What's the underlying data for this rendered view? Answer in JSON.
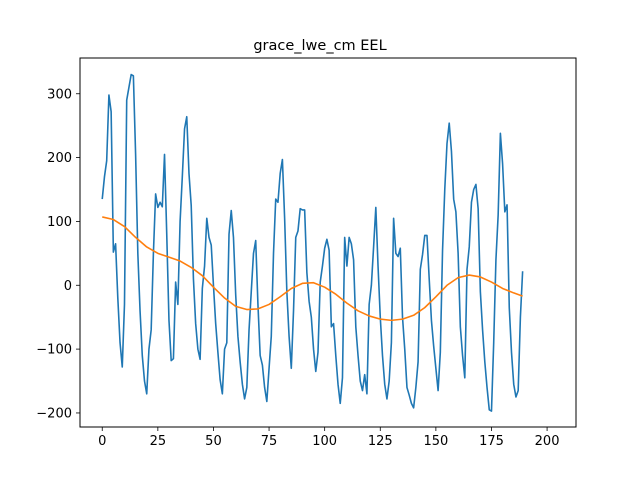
{
  "chart_data": {
    "type": "line",
    "title": "grace_lwe_cm EEL",
    "xlabel": "",
    "ylabel": "",
    "xlim": [
      -10,
      213
    ],
    "ylim": [
      -222,
      356
    ],
    "x_ticks": [
      0,
      25,
      50,
      75,
      100,
      125,
      150,
      175,
      200
    ],
    "y_ticks": [
      -200,
      -100,
      0,
      100,
      200,
      300
    ],
    "grid": false,
    "legend": "none",
    "series": [
      {
        "color": "#1f77b4",
        "points": [
          [
            0,
            135
          ],
          [
            1,
            170
          ],
          [
            2,
            195
          ],
          [
            3,
            298
          ],
          [
            4,
            272
          ],
          [
            5,
            52
          ],
          [
            6,
            65
          ],
          [
            7,
            -20
          ],
          [
            8,
            -90
          ],
          [
            9,
            -128
          ],
          [
            10,
            -30
          ],
          [
            11,
            290
          ],
          [
            12,
            310
          ],
          [
            13,
            330
          ],
          [
            14,
            328
          ],
          [
            15,
            205
          ],
          [
            16,
            50
          ],
          [
            17,
            -40
          ],
          [
            18,
            -110
          ],
          [
            19,
            -150
          ],
          [
            20,
            -170
          ],
          [
            21,
            -100
          ],
          [
            22,
            -70
          ],
          [
            23,
            50
          ],
          [
            24,
            143
          ],
          [
            25,
            122
          ],
          [
            26,
            130
          ],
          [
            27,
            123
          ],
          [
            28,
            205
          ],
          [
            29,
            80
          ],
          [
            30,
            -55
          ],
          [
            31,
            -118
          ],
          [
            32,
            -115
          ],
          [
            33,
            5
          ],
          [
            34,
            -30
          ],
          [
            35,
            100
          ],
          [
            36,
            170
          ],
          [
            37,
            245
          ],
          [
            38,
            264
          ],
          [
            39,
            175
          ],
          [
            40,
            125
          ],
          [
            41,
            10
          ],
          [
            42,
            -60
          ],
          [
            43,
            -100
          ],
          [
            44,
            -116
          ],
          [
            45,
            -5
          ],
          [
            46,
            30
          ],
          [
            47,
            105
          ],
          [
            48,
            75
          ],
          [
            49,
            63
          ],
          [
            50,
            0
          ],
          [
            51,
            -60
          ],
          [
            52,
            -105
          ],
          [
            53,
            -148
          ],
          [
            54,
            -170
          ],
          [
            55,
            -100
          ],
          [
            56,
            -90
          ],
          [
            57,
            80
          ],
          [
            58,
            117
          ],
          [
            59,
            75
          ],
          [
            60,
            -15
          ],
          [
            61,
            -80
          ],
          [
            62,
            -120
          ],
          [
            63,
            -155
          ],
          [
            64,
            -178
          ],
          [
            65,
            -160
          ],
          [
            66,
            -70
          ],
          [
            67,
            -10
          ],
          [
            68,
            50
          ],
          [
            69,
            70
          ],
          [
            70,
            -30
          ],
          [
            71,
            -110
          ],
          [
            72,
            -125
          ],
          [
            73,
            -160
          ],
          [
            74,
            -182
          ],
          [
            75,
            -130
          ],
          [
            76,
            -80
          ],
          [
            77,
            50
          ],
          [
            78,
            135
          ],
          [
            79,
            130
          ],
          [
            80,
            175
          ],
          [
            81,
            197
          ],
          [
            82,
            105
          ],
          [
            83,
            -10
          ],
          [
            84,
            -80
          ],
          [
            85,
            -130
          ],
          [
            86,
            -40
          ],
          [
            87,
            75
          ],
          [
            88,
            85
          ],
          [
            89,
            120
          ],
          [
            90,
            118
          ],
          [
            91,
            118
          ],
          [
            92,
            20
          ],
          [
            93,
            -25
          ],
          [
            94,
            -50
          ],
          [
            95,
            -100
          ],
          [
            96,
            -135
          ],
          [
            97,
            -105
          ],
          [
            98,
            5
          ],
          [
            99,
            30
          ],
          [
            100,
            58
          ],
          [
            101,
            72
          ],
          [
            102,
            55
          ],
          [
            103,
            -65
          ],
          [
            104,
            -60
          ],
          [
            105,
            -110
          ],
          [
            106,
            -155
          ],
          [
            107,
            -185
          ],
          [
            108,
            -145
          ],
          [
            109,
            75
          ],
          [
            110,
            30
          ],
          [
            111,
            75
          ],
          [
            112,
            65
          ],
          [
            113,
            40
          ],
          [
            114,
            -65
          ],
          [
            115,
            -110
          ],
          [
            116,
            -150
          ],
          [
            117,
            -165
          ],
          [
            118,
            -140
          ],
          [
            119,
            -170
          ],
          [
            120,
            -30
          ],
          [
            121,
            0
          ],
          [
            122,
            60
          ],
          [
            123,
            122
          ],
          [
            124,
            30
          ],
          [
            125,
            -50
          ],
          [
            126,
            -110
          ],
          [
            127,
            -155
          ],
          [
            128,
            -178
          ],
          [
            129,
            -150
          ],
          [
            130,
            -90
          ],
          [
            131,
            105
          ],
          [
            132,
            50
          ],
          [
            133,
            45
          ],
          [
            134,
            58
          ],
          [
            135,
            -50
          ],
          [
            136,
            -100
          ],
          [
            137,
            -160
          ],
          [
            138,
            -172
          ],
          [
            139,
            -185
          ],
          [
            140,
            -192
          ],
          [
            141,
            -160
          ],
          [
            142,
            -120
          ],
          [
            143,
            25
          ],
          [
            144,
            48
          ],
          [
            145,
            78
          ],
          [
            146,
            78
          ],
          [
            147,
            10
          ],
          [
            148,
            -55
          ],
          [
            149,
            -95
          ],
          [
            150,
            -130
          ],
          [
            151,
            -165
          ],
          [
            152,
            -105
          ],
          [
            153,
            55
          ],
          [
            154,
            150
          ],
          [
            155,
            222
          ],
          [
            156,
            254
          ],
          [
            157,
            210
          ],
          [
            158,
            135
          ],
          [
            159,
            115
          ],
          [
            160,
            50
          ],
          [
            161,
            -65
          ],
          [
            162,
            -110
          ],
          [
            163,
            -145
          ],
          [
            164,
            25
          ],
          [
            165,
            60
          ],
          [
            166,
            130
          ],
          [
            167,
            150
          ],
          [
            168,
            158
          ],
          [
            169,
            120
          ],
          [
            170,
            -10
          ],
          [
            171,
            -70
          ],
          [
            172,
            -120
          ],
          [
            173,
            -160
          ],
          [
            174,
            -195
          ],
          [
            175,
            -197
          ],
          [
            176,
            -90
          ],
          [
            177,
            40
          ],
          [
            178,
            110
          ],
          [
            179,
            238
          ],
          [
            180,
            190
          ],
          [
            181,
            115
          ],
          [
            182,
            126
          ],
          [
            183,
            -35
          ],
          [
            184,
            -105
          ],
          [
            185,
            -155
          ],
          [
            186,
            -175
          ],
          [
            187,
            -165
          ],
          [
            188,
            -50
          ],
          [
            189,
            22
          ]
        ]
      },
      {
        "color": "#ff7f0e",
        "points": [
          [
            0,
            107
          ],
          [
            5,
            103
          ],
          [
            10,
            92
          ],
          [
            15,
            75
          ],
          [
            20,
            60
          ],
          [
            25,
            50
          ],
          [
            30,
            44
          ],
          [
            35,
            38
          ],
          [
            40,
            28
          ],
          [
            45,
            15
          ],
          [
            50,
            -3
          ],
          [
            55,
            -20
          ],
          [
            60,
            -33
          ],
          [
            65,
            -38
          ],
          [
            70,
            -37
          ],
          [
            75,
            -30
          ],
          [
            80,
            -18
          ],
          [
            85,
            -5
          ],
          [
            90,
            3
          ],
          [
            95,
            4
          ],
          [
            100,
            -3
          ],
          [
            105,
            -14
          ],
          [
            110,
            -28
          ],
          [
            115,
            -40
          ],
          [
            120,
            -48
          ],
          [
            125,
            -53
          ],
          [
            130,
            -55
          ],
          [
            135,
            -53
          ],
          [
            140,
            -47
          ],
          [
            145,
            -35
          ],
          [
            150,
            -18
          ],
          [
            155,
            0
          ],
          [
            160,
            12
          ],
          [
            165,
            16
          ],
          [
            170,
            13
          ],
          [
            175,
            5
          ],
          [
            180,
            -5
          ],
          [
            185,
            -12
          ],
          [
            189,
            -17
          ]
        ]
      }
    ]
  }
}
